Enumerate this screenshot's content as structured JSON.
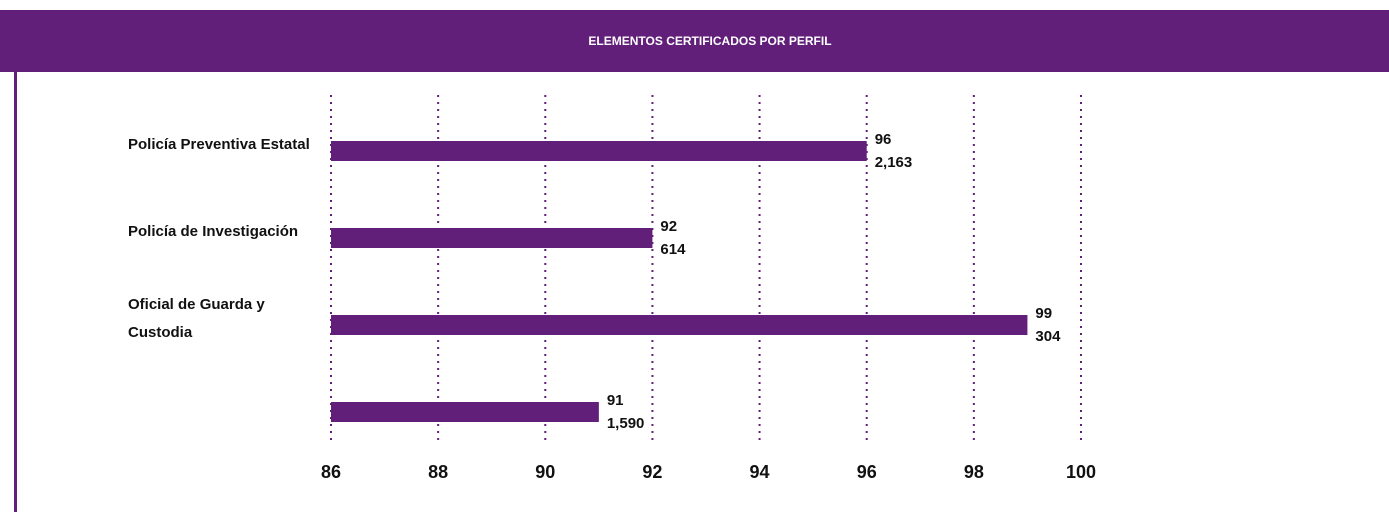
{
  "chart_data": {
    "type": "bar",
    "orientation": "horizontal",
    "title": "ELEMENTOS CERTIFICADOS POR PERFIL",
    "categories": [
      "Policía Preventiva Estatal",
      "Policía de Investigación",
      "Oficial de Guarda y Custodia",
      null
    ],
    "values": [
      96,
      92,
      99,
      91
    ],
    "count_labels": [
      "2,163",
      "614",
      "304",
      "1,590"
    ],
    "color": "#621f7a",
    "xlim": [
      86,
      100
    ],
    "xticks": [
      86,
      88,
      90,
      92,
      94,
      96,
      98,
      100
    ],
    "grid": true
  }
}
